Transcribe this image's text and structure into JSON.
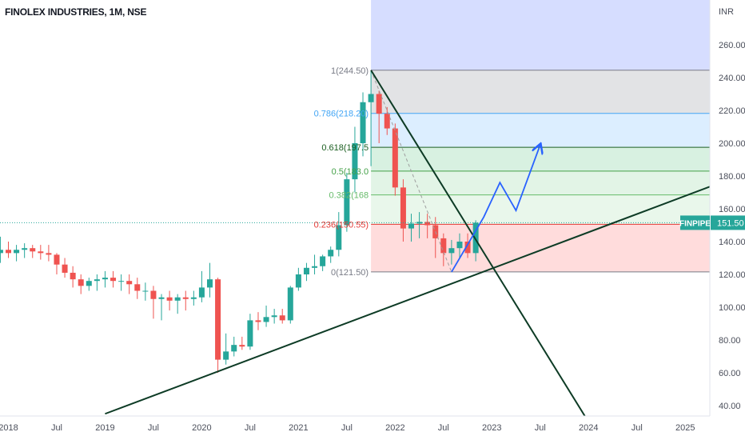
{
  "header": {
    "title": "FINOLEX INDUSTRIES, 1M, NSE"
  },
  "colors": {
    "up": "#26a69a",
    "down": "#ef5350",
    "trendline": "#0d3b25",
    "projection": "#2962ff",
    "price_label_bg": "#26a69a"
  },
  "price_label": {
    "symbol": "FINPIPE",
    "value": "151.50"
  },
  "chart_data": {
    "type": "candlestick",
    "title": "FINOLEX INDUSTRIES, 1M, NSE",
    "ylabel": "INR",
    "ylim": [
      30,
      275
    ],
    "y_ticks": [
      "260.00",
      "240.00",
      "220.00",
      "200.00",
      "180.00",
      "160.00",
      "140.00",
      "120.00",
      "100.00",
      "80.00",
      "60.00",
      "40.00"
    ],
    "x_ticks": [
      "2018",
      "Jul",
      "2019",
      "Jul",
      "2020",
      "Jul",
      "2021",
      "Jul",
      "2022",
      "Jul",
      "2023",
      "Jul",
      "2024",
      "Jul",
      "2025"
    ],
    "x_ticks_dates": [
      "2018-01",
      "2018-07",
      "2019-01",
      "2019-07",
      "2020-01",
      "2020-07",
      "2021-01",
      "2021-07",
      "2022-01",
      "2022-07",
      "2023-01",
      "2023-07",
      "2024-01",
      "2024-07",
      "2025-01"
    ],
    "months": [
      "2017-11",
      "2017-12",
      "2018-01",
      "2018-02",
      "2018-03",
      "2018-04",
      "2018-05",
      "2018-06",
      "2018-07",
      "2018-08",
      "2018-09",
      "2018-10",
      "2018-11",
      "2018-12",
      "2019-01",
      "2019-02",
      "2019-03",
      "2019-04",
      "2019-05",
      "2019-06",
      "2019-07",
      "2019-08",
      "2019-09",
      "2019-10",
      "2019-11",
      "2019-12",
      "2020-01",
      "2020-02",
      "2020-03",
      "2020-04",
      "2020-05",
      "2020-06",
      "2020-07",
      "2020-08",
      "2020-09",
      "2020-10",
      "2020-11",
      "2020-12",
      "2021-01",
      "2021-02",
      "2021-03",
      "2021-04",
      "2021-05",
      "2021-06",
      "2021-07",
      "2021-08",
      "2021-09",
      "2021-10",
      "2021-11",
      "2021-12",
      "2022-01",
      "2022-02",
      "2022-03",
      "2022-04",
      "2022-05",
      "2022-06",
      "2022-07",
      "2022-08",
      "2022-09",
      "2022-10",
      "2022-11"
    ],
    "open": [
      130,
      133,
      135,
      133,
      135,
      136,
      134,
      133,
      132,
      126,
      121,
      117,
      113,
      116,
      117,
      118,
      116,
      116,
      114,
      110,
      110,
      105,
      106,
      104,
      106,
      105,
      106,
      112,
      117,
      68,
      73,
      77,
      76,
      92,
      91,
      94,
      95,
      92,
      112,
      120,
      124,
      125,
      131,
      135,
      150,
      178,
      200,
      225,
      230,
      218,
      209,
      173,
      148,
      151,
      152,
      150,
      142,
      133,
      136,
      140,
      133
    ],
    "high": [
      140,
      143,
      140,
      138,
      139,
      138,
      138,
      138,
      133,
      130,
      125,
      120,
      118,
      120,
      122,
      122,
      120,
      120,
      118,
      115,
      113,
      108,
      110,
      108,
      110,
      110,
      122,
      127,
      118,
      84,
      82,
      82,
      96,
      97,
      101,
      99,
      99,
      113,
      124,
      127,
      132,
      132,
      137,
      158,
      182,
      210,
      231,
      244,
      232,
      222,
      212,
      178,
      157,
      158,
      157,
      155,
      145,
      141,
      145,
      145,
      153
    ],
    "low": [
      125,
      127,
      130,
      128,
      130,
      130,
      129,
      128,
      120,
      118,
      112,
      108,
      110,
      110,
      112,
      112,
      110,
      108,
      105,
      104,
      93,
      92,
      98,
      96,
      98,
      101,
      103,
      106,
      60,
      65,
      70,
      74,
      74,
      86,
      88,
      90,
      90,
      90,
      110,
      116,
      120,
      122,
      127,
      131,
      146,
      170,
      192,
      186,
      200,
      205,
      168,
      140,
      140,
      142,
      142,
      130,
      125,
      126,
      130,
      130,
      128
    ],
    "close": [
      133,
      135,
      133,
      135,
      136,
      134,
      133,
      132,
      126,
      121,
      117,
      113,
      116,
      117,
      118,
      116,
      116,
      114,
      110,
      110,
      105,
      106,
      104,
      106,
      105,
      106,
      112,
      117,
      68,
      73,
      77,
      76,
      92,
      91,
      94,
      95,
      92,
      112,
      120,
      124,
      125,
      131,
      135,
      150,
      178,
      200,
      225,
      230,
      218,
      209,
      173,
      148,
      151,
      152,
      150,
      142,
      133,
      136,
      140,
      133,
      151.5
    ],
    "fibonacci": {
      "start_month": "2021-10",
      "levels": [
        {
          "label": "1(244.50)",
          "value": 244.5,
          "color": "#787b86"
        },
        {
          "label": "0.786(218.20)",
          "value": 218.2,
          "color": "#42a5f5"
        },
        {
          "label": "0.618(197.5",
          "value": 197.5,
          "color": "#1b5e20"
        },
        {
          "label": "0.5(183.0",
          "value": 183.0,
          "color": "#43a047"
        },
        {
          "label": "0.382(168",
          "value": 168.5,
          "color": "#66bb6a"
        },
        {
          "label": "0.236(150.55)",
          "value": 150.55,
          "color": "#e53935"
        },
        {
          "label": "0(121.50)",
          "value": 121.5,
          "color": "#787b86"
        }
      ]
    },
    "trendlines": [
      {
        "from": [
          "2019-01",
          35
        ],
        "to": [
          "2026-01",
          190
        ]
      },
      {
        "from": [
          "2021-10",
          244.5
        ],
        "to": [
          "2024-01",
          30
        ]
      }
    ],
    "projection": [
      [
        "2022-08",
        121.5
      ],
      [
        "2022-12",
        155
      ],
      [
        "2023-02",
        176
      ],
      [
        "2023-04",
        159
      ],
      [
        "2023-07",
        199
      ]
    ],
    "dashed_swing": [
      [
        "2021-10",
        244.5
      ],
      [
        "2022-08",
        121.5
      ]
    ],
    "last_price": 151.5
  }
}
